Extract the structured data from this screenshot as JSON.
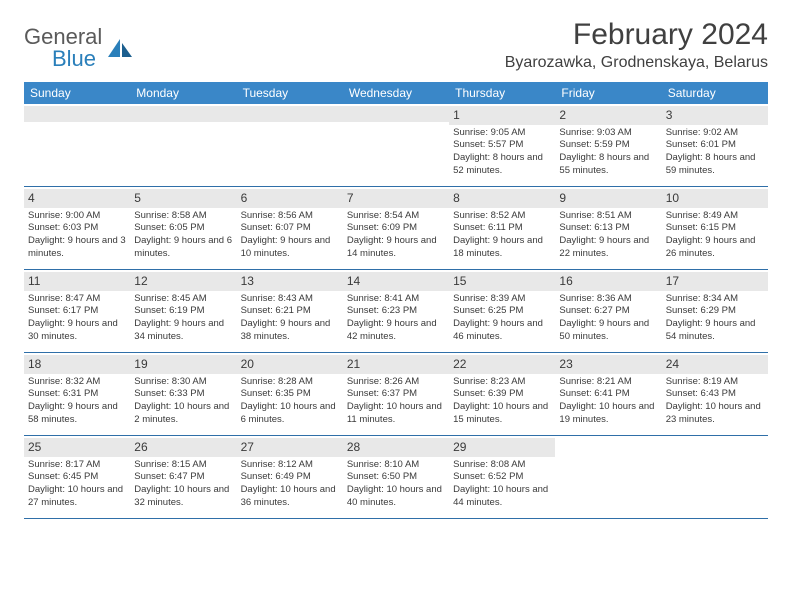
{
  "logo": {
    "text1": "General",
    "text2": "Blue"
  },
  "title": "February 2024",
  "location": "Byarozawka, Grodnenskaya, Belarus",
  "colors": {
    "header_bg": "#3a87c8",
    "header_text": "#ffffff",
    "daynum_bg": "#e8e8e8",
    "week_border": "#2f6fa8",
    "text": "#3a3a3a",
    "logo_gray": "#5a5a5a",
    "logo_blue": "#2a7fba"
  },
  "day_names": [
    "Sunday",
    "Monday",
    "Tuesday",
    "Wednesday",
    "Thursday",
    "Friday",
    "Saturday"
  ],
  "weeks": [
    [
      null,
      null,
      null,
      null,
      {
        "n": "1",
        "sr": "9:05 AM",
        "ss": "5:57 PM",
        "dl": "8 hours and 52 minutes."
      },
      {
        "n": "2",
        "sr": "9:03 AM",
        "ss": "5:59 PM",
        "dl": "8 hours and 55 minutes."
      },
      {
        "n": "3",
        "sr": "9:02 AM",
        "ss": "6:01 PM",
        "dl": "8 hours and 59 minutes."
      }
    ],
    [
      {
        "n": "4",
        "sr": "9:00 AM",
        "ss": "6:03 PM",
        "dl": "9 hours and 3 minutes."
      },
      {
        "n": "5",
        "sr": "8:58 AM",
        "ss": "6:05 PM",
        "dl": "9 hours and 6 minutes."
      },
      {
        "n": "6",
        "sr": "8:56 AM",
        "ss": "6:07 PM",
        "dl": "9 hours and 10 minutes."
      },
      {
        "n": "7",
        "sr": "8:54 AM",
        "ss": "6:09 PM",
        "dl": "9 hours and 14 minutes."
      },
      {
        "n": "8",
        "sr": "8:52 AM",
        "ss": "6:11 PM",
        "dl": "9 hours and 18 minutes."
      },
      {
        "n": "9",
        "sr": "8:51 AM",
        "ss": "6:13 PM",
        "dl": "9 hours and 22 minutes."
      },
      {
        "n": "10",
        "sr": "8:49 AM",
        "ss": "6:15 PM",
        "dl": "9 hours and 26 minutes."
      }
    ],
    [
      {
        "n": "11",
        "sr": "8:47 AM",
        "ss": "6:17 PM",
        "dl": "9 hours and 30 minutes."
      },
      {
        "n": "12",
        "sr": "8:45 AM",
        "ss": "6:19 PM",
        "dl": "9 hours and 34 minutes."
      },
      {
        "n": "13",
        "sr": "8:43 AM",
        "ss": "6:21 PM",
        "dl": "9 hours and 38 minutes."
      },
      {
        "n": "14",
        "sr": "8:41 AM",
        "ss": "6:23 PM",
        "dl": "9 hours and 42 minutes."
      },
      {
        "n": "15",
        "sr": "8:39 AM",
        "ss": "6:25 PM",
        "dl": "9 hours and 46 minutes."
      },
      {
        "n": "16",
        "sr": "8:36 AM",
        "ss": "6:27 PM",
        "dl": "9 hours and 50 minutes."
      },
      {
        "n": "17",
        "sr": "8:34 AM",
        "ss": "6:29 PM",
        "dl": "9 hours and 54 minutes."
      }
    ],
    [
      {
        "n": "18",
        "sr": "8:32 AM",
        "ss": "6:31 PM",
        "dl": "9 hours and 58 minutes."
      },
      {
        "n": "19",
        "sr": "8:30 AM",
        "ss": "6:33 PM",
        "dl": "10 hours and 2 minutes."
      },
      {
        "n": "20",
        "sr": "8:28 AM",
        "ss": "6:35 PM",
        "dl": "10 hours and 6 minutes."
      },
      {
        "n": "21",
        "sr": "8:26 AM",
        "ss": "6:37 PM",
        "dl": "10 hours and 11 minutes."
      },
      {
        "n": "22",
        "sr": "8:23 AM",
        "ss": "6:39 PM",
        "dl": "10 hours and 15 minutes."
      },
      {
        "n": "23",
        "sr": "8:21 AM",
        "ss": "6:41 PM",
        "dl": "10 hours and 19 minutes."
      },
      {
        "n": "24",
        "sr": "8:19 AM",
        "ss": "6:43 PM",
        "dl": "10 hours and 23 minutes."
      }
    ],
    [
      {
        "n": "25",
        "sr": "8:17 AM",
        "ss": "6:45 PM",
        "dl": "10 hours and 27 minutes."
      },
      {
        "n": "26",
        "sr": "8:15 AM",
        "ss": "6:47 PM",
        "dl": "10 hours and 32 minutes."
      },
      {
        "n": "27",
        "sr": "8:12 AM",
        "ss": "6:49 PM",
        "dl": "10 hours and 36 minutes."
      },
      {
        "n": "28",
        "sr": "8:10 AM",
        "ss": "6:50 PM",
        "dl": "10 hours and 40 minutes."
      },
      {
        "n": "29",
        "sr": "8:08 AM",
        "ss": "6:52 PM",
        "dl": "10 hours and 44 minutes."
      },
      null,
      null
    ]
  ],
  "labels": {
    "sunrise": "Sunrise:",
    "sunset": "Sunset:",
    "daylight": "Daylight:"
  }
}
